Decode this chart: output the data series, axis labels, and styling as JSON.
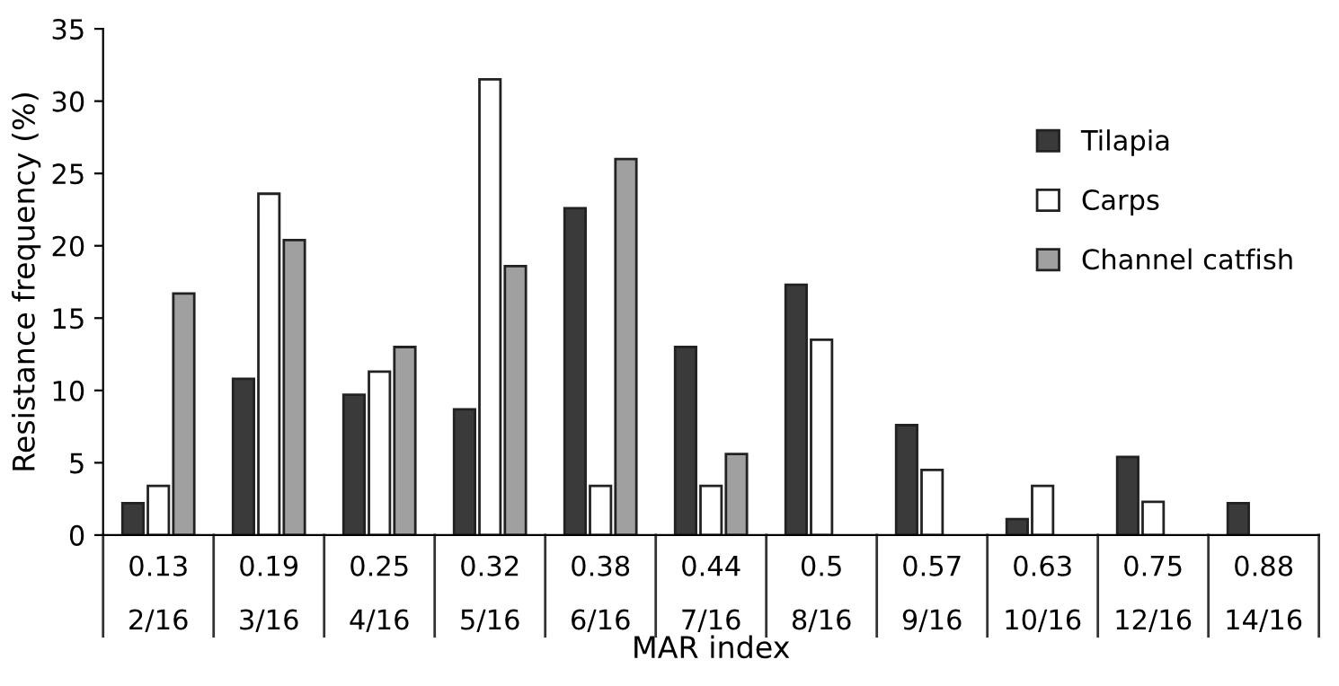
{
  "chart_data": {
    "type": "bar",
    "xlabel": "MAR index",
    "ylabel": "Resistance frequency (%)",
    "categories": [
      "0.13\n2/16",
      "0.19\n3/16",
      "0.25\n4/16",
      "0.32\n5/16",
      "0.38\n6/16",
      "0.44\n7/16",
      "0.5\n8/16",
      "0.57\n9/16",
      "0.63\n10/16",
      "0.75\n12/16",
      "0.88\n14/16"
    ],
    "series": [
      {
        "name": "Tilapia",
        "color": "#3a3a3a",
        "values": [
          2.2,
          10.8,
          9.7,
          8.7,
          22.6,
          13.0,
          17.3,
          7.6,
          1.1,
          5.4,
          2.2
        ]
      },
      {
        "name": "Carps",
        "color": "#ffffff",
        "values": [
          3.4,
          23.6,
          11.3,
          31.5,
          3.4,
          3.4,
          13.5,
          4.5,
          3.4,
          2.3,
          null
        ]
      },
      {
        "name": "Channel catfish",
        "color": "#a0a0a0",
        "values": [
          16.7,
          20.4,
          13.0,
          18.6,
          26.0,
          5.6,
          null,
          null,
          null,
          null,
          null
        ]
      }
    ],
    "ylim": [
      0,
      35
    ],
    "yticks": [
      0,
      5,
      10,
      15,
      20,
      25,
      30,
      35
    ],
    "grid": false,
    "legend": "top right"
  }
}
